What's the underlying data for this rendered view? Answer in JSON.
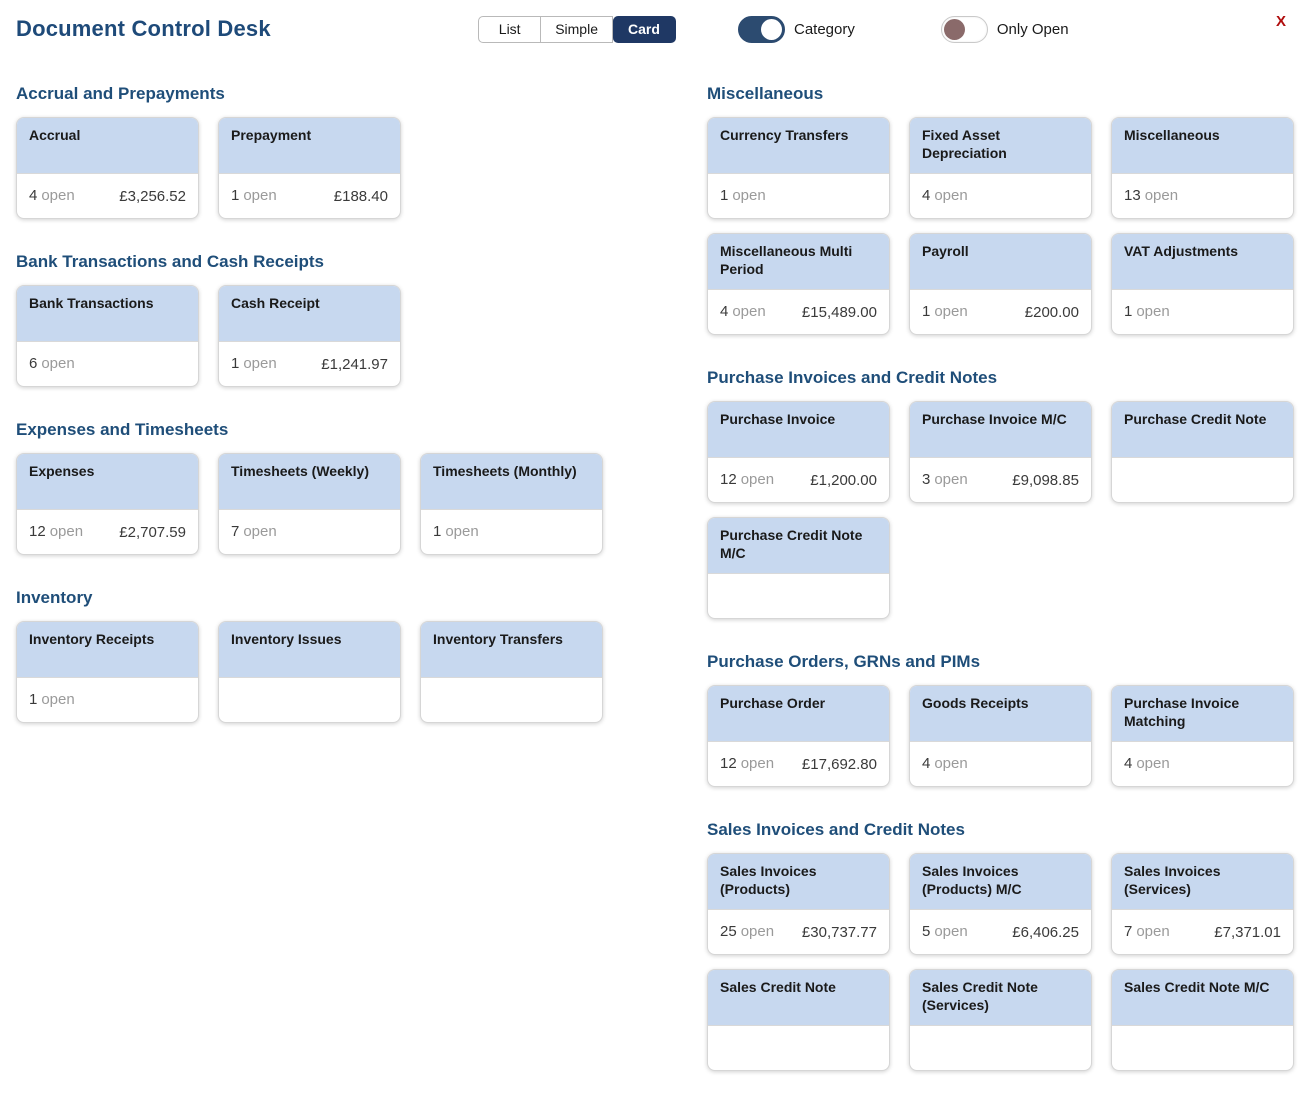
{
  "header": {
    "title": "Document Control Desk",
    "view_toggle": {
      "options": [
        "List",
        "Simple",
        "Card"
      ],
      "selected": "Card"
    },
    "category_toggle": {
      "label": "Category",
      "on": true
    },
    "only_open_toggle": {
      "label": "Only Open",
      "on": false
    },
    "close_label": "X"
  },
  "colors": {
    "title_navy": "#1e4a79",
    "section_navy": "#1f4e79",
    "card_header_blue": "#c7d8ef",
    "selected_segment_navy": "#1f3864",
    "toggle_on_navy": "#2c4b70",
    "toggle_off_knob_mauve": "#8a6a6a",
    "close_red": "#b00d0d"
  },
  "columns": [
    {
      "sections": [
        {
          "title": "Accrual and Prepayments",
          "cards": [
            {
              "title": "Accrual",
              "open_count": "4",
              "open_label": "open",
              "amount": "£3,256.52"
            },
            {
              "title": "Prepayment",
              "open_count": "1",
              "open_label": "open",
              "amount": "£188.40"
            }
          ]
        },
        {
          "title": "Bank Transactions and Cash Receipts",
          "cards": [
            {
              "title": "Bank Transactions",
              "open_count": "6",
              "open_label": "open",
              "amount": ""
            },
            {
              "title": "Cash Receipt",
              "open_count": "1",
              "open_label": "open",
              "amount": "£1,241.97"
            }
          ]
        },
        {
          "title": "Expenses and Timesheets",
          "cards": [
            {
              "title": "Expenses",
              "open_count": "12",
              "open_label": "open",
              "amount": "£2,707.59"
            },
            {
              "title": "Timesheets (Weekly)",
              "open_count": "7",
              "open_label": "open",
              "amount": ""
            },
            {
              "title": "Timesheets (Monthly)",
              "open_count": "1",
              "open_label": "open",
              "amount": ""
            }
          ]
        },
        {
          "title": "Inventory",
          "cards": [
            {
              "title": "Inventory Receipts",
              "open_count": "1",
              "open_label": "open",
              "amount": ""
            },
            {
              "title": "Inventory Issues",
              "open_count": "",
              "open_label": "",
              "amount": ""
            },
            {
              "title": "Inventory Transfers",
              "open_count": "",
              "open_label": "",
              "amount": ""
            }
          ]
        }
      ]
    },
    {
      "sections": [
        {
          "title": "Miscellaneous",
          "cards": [
            {
              "title": "Currency Transfers",
              "open_count": "1",
              "open_label": "open",
              "amount": ""
            },
            {
              "title": "Fixed Asset Depreciation",
              "open_count": "4",
              "open_label": "open",
              "amount": ""
            },
            {
              "title": "Miscellaneous",
              "open_count": "13",
              "open_label": "open",
              "amount": ""
            },
            {
              "title": "Miscellaneous Multi Period",
              "open_count": "4",
              "open_label": "open",
              "amount": "£15,489.00"
            },
            {
              "title": "Payroll",
              "open_count": "1",
              "open_label": "open",
              "amount": "£200.00"
            },
            {
              "title": "VAT Adjustments",
              "open_count": "1",
              "open_label": "open",
              "amount": ""
            }
          ]
        },
        {
          "title": "Purchase Invoices and Credit Notes",
          "cards": [
            {
              "title": "Purchase Invoice",
              "open_count": "12",
              "open_label": "open",
              "amount": "£1,200.00"
            },
            {
              "title": "Purchase Invoice M/C",
              "open_count": "3",
              "open_label": "open",
              "amount": "£9,098.85"
            },
            {
              "title": "Purchase Credit Note",
              "open_count": "",
              "open_label": "",
              "amount": ""
            },
            {
              "title": "Purchase Credit Note M/C",
              "open_count": "",
              "open_label": "",
              "amount": ""
            }
          ]
        },
        {
          "title": "Purchase Orders, GRNs and PIMs",
          "cards": [
            {
              "title": "Purchase Order",
              "open_count": "12",
              "open_label": "open",
              "amount": "£17,692.80"
            },
            {
              "title": "Goods Receipts",
              "open_count": "4",
              "open_label": "open",
              "amount": ""
            },
            {
              "title": "Purchase Invoice Matching",
              "open_count": "4",
              "open_label": "open",
              "amount": ""
            }
          ]
        },
        {
          "title": "Sales Invoices and Credit Notes",
          "cards": [
            {
              "title": "Sales Invoices (Products)",
              "open_count": "25",
              "open_label": "open",
              "amount": "£30,737.77"
            },
            {
              "title": "Sales Invoices (Products) M/C",
              "open_count": "5",
              "open_label": "open",
              "amount": "£6,406.25"
            },
            {
              "title": "Sales Invoices (Services)",
              "open_count": "7",
              "open_label": "open",
              "amount": "£7,371.01"
            },
            {
              "title": "Sales Credit Note",
              "open_count": "",
              "open_label": "",
              "amount": ""
            },
            {
              "title": "Sales Credit Note (Services)",
              "open_count": "",
              "open_label": "",
              "amount": ""
            },
            {
              "title": "Sales Credit Note M/C",
              "open_count": "",
              "open_label": "",
              "amount": ""
            }
          ]
        }
      ]
    }
  ]
}
